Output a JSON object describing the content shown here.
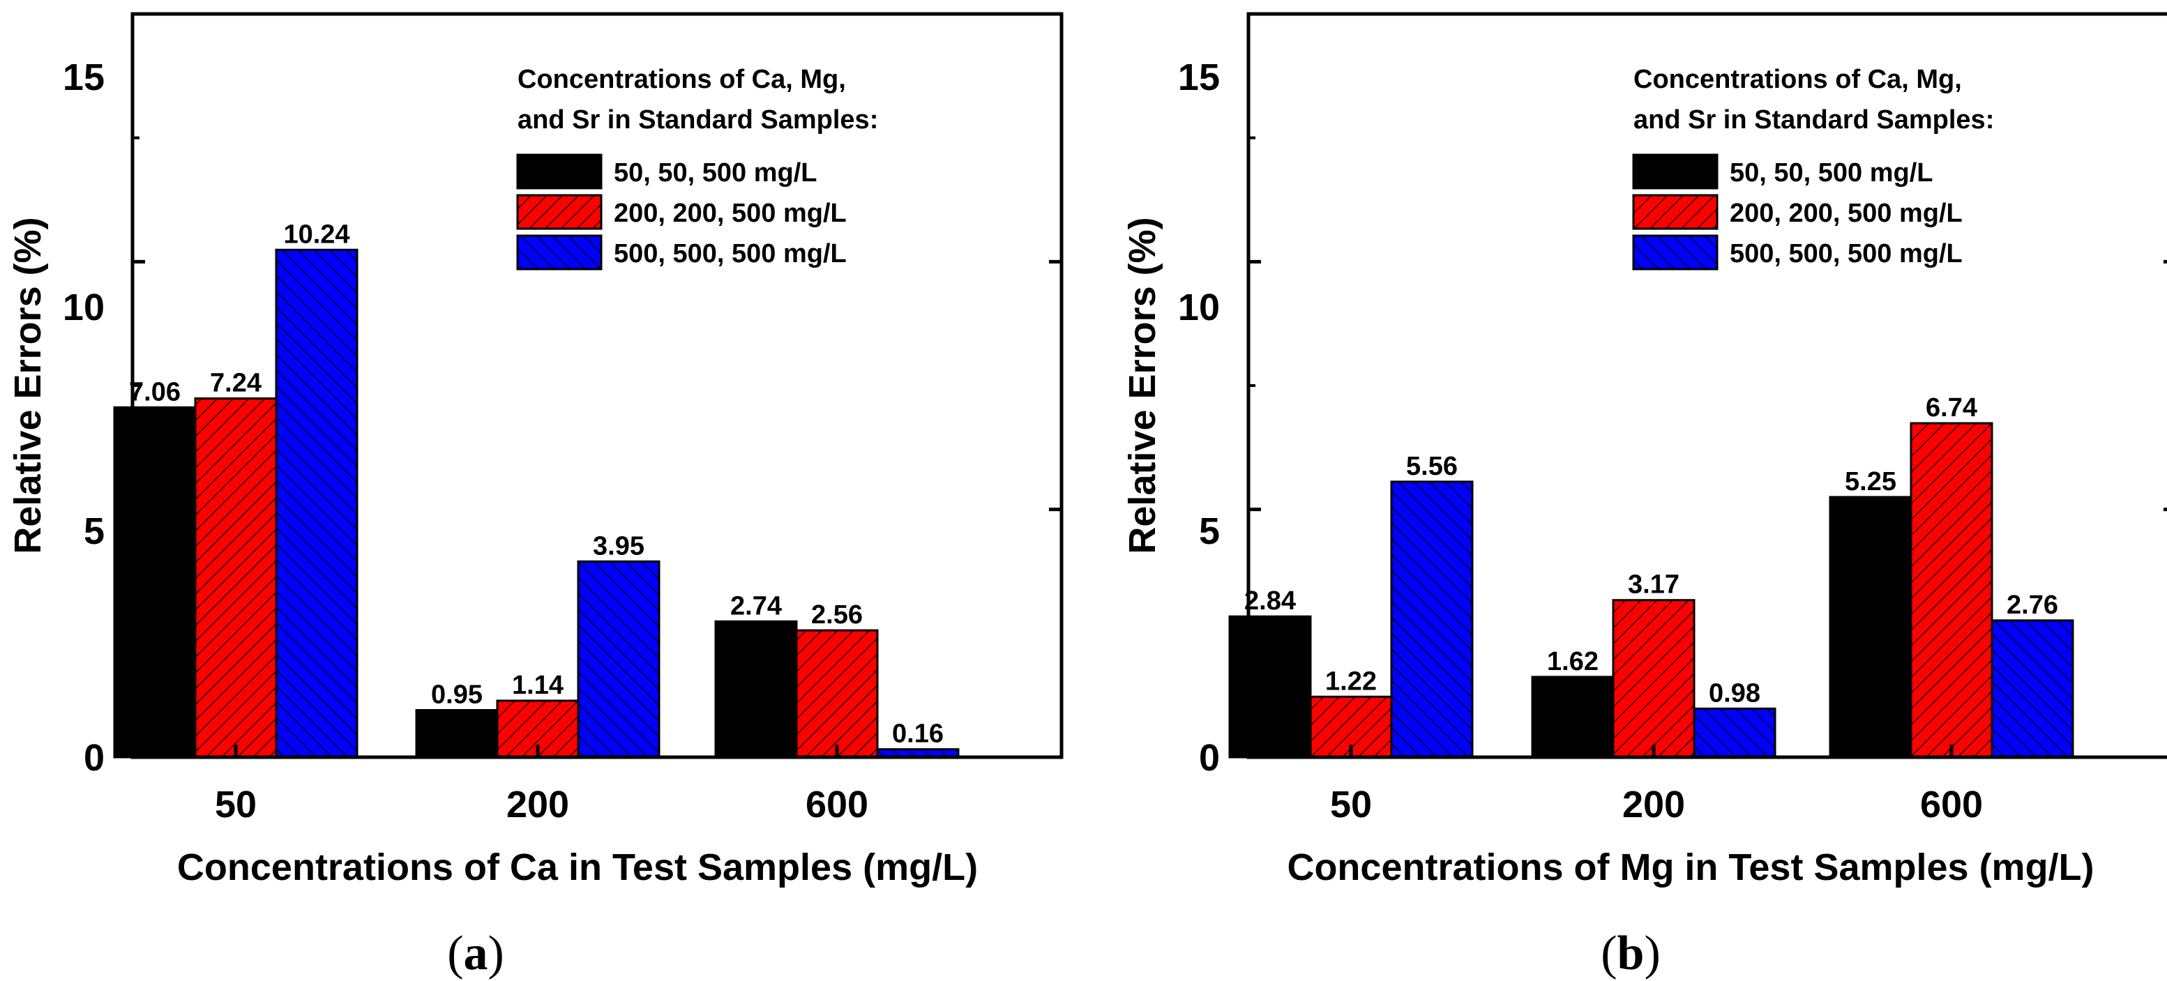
{
  "chart_data": [
    {
      "type": "bar",
      "panel": "(a)",
      "panel_letter": "a",
      "categories": [
        "50",
        "200",
        "600"
      ],
      "series": [
        {
          "name": "50, 50, 500 mg/L",
          "values": [
            7.06,
            0.95,
            2.74
          ],
          "color": "#000000",
          "pattern": "solid",
          "labels": [
            "7.06",
            "0.95",
            "2.74"
          ]
        },
        {
          "name": "200, 200, 500 mg/L",
          "values": [
            7.24,
            1.14,
            2.56
          ],
          "color": "#ff0000",
          "pattern": "hatch-forward",
          "labels": [
            "7.24",
            "1.14",
            "2.56"
          ]
        },
        {
          "name": "500, 500, 500 mg/L",
          "values": [
            10.24,
            3.95,
            0.16
          ],
          "color": "#0000ff",
          "pattern": "hatch-backward",
          "labels": [
            "10.24",
            "3.95",
            "0.16"
          ]
        }
      ],
      "xlabel": "Concentrations of Ca in Test Samples (mg/L)",
      "ylabel": "Relative Errors (%)",
      "ylim": [
        0,
        15
      ],
      "yticks": [
        "0",
        "5",
        "10",
        "15"
      ],
      "legend_title_1": "Concentrations of Ca, Mg,",
      "legend_title_2": "and Sr in Standard Samples:",
      "legend_position": "top-right"
    },
    {
      "type": "bar",
      "panel": "(b)",
      "panel_letter": "b",
      "categories": [
        "50",
        "200",
        "600"
      ],
      "series": [
        {
          "name": "50, 50, 500 mg/L",
          "values": [
            2.84,
            1.62,
            5.25
          ],
          "color": "#000000",
          "pattern": "solid",
          "labels": [
            "2.84",
            "1.62",
            "5.25"
          ]
        },
        {
          "name": "200, 200, 500 mg/L",
          "values": [
            1.22,
            3.17,
            6.74
          ],
          "color": "#ff0000",
          "pattern": "hatch-forward",
          "labels": [
            "1.22",
            "3.17",
            "6.74"
          ]
        },
        {
          "name": "500, 500, 500 mg/L",
          "values": [
            5.56,
            0.98,
            2.76
          ],
          "color": "#0000ff",
          "pattern": "hatch-backward",
          "labels": [
            "5.56",
            "0.98",
            "2.76"
          ]
        }
      ],
      "xlabel": "Concentrations of Mg in Test Samples (mg/L)",
      "ylabel": "Relative Errors (%)",
      "ylim": [
        0,
        15
      ],
      "yticks": [
        "0",
        "5",
        "10",
        "15"
      ],
      "legend_title_1": "Concentrations of Ca, Mg,",
      "legend_title_2": "and Sr in Standard Samples:",
      "legend_position": "top-right"
    }
  ]
}
